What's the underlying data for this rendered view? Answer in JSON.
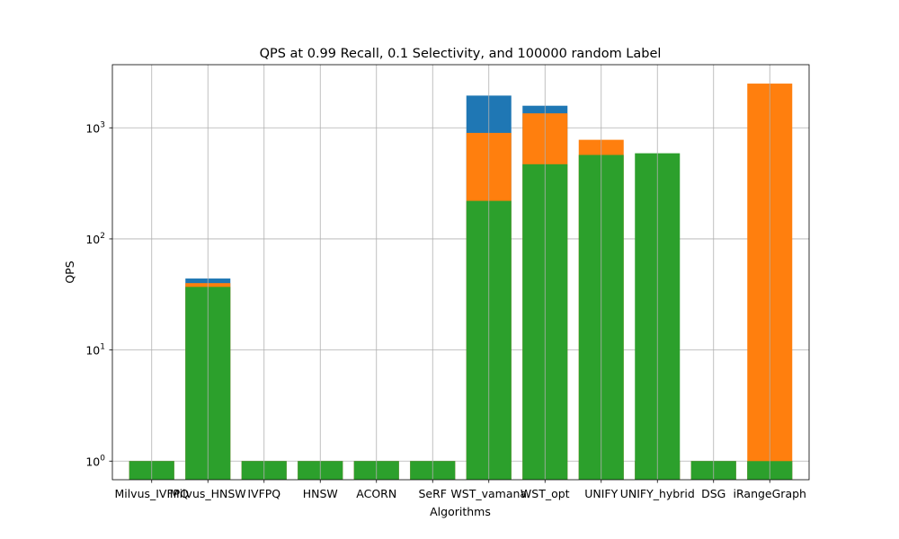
{
  "chart_data": {
    "type": "bar",
    "title": "QPS at 0.99 Recall, 0.1 Selectivity, and 100000 random Label",
    "xlabel": "Algorithms",
    "ylabel": "QPS",
    "yscale": "log",
    "ylim": [
      0.68,
      3700
    ],
    "yticks": [
      {
        "value": 1,
        "base": "10",
        "exp": "0"
      },
      {
        "value": 10,
        "base": "10",
        "exp": "1"
      },
      {
        "value": 100,
        "base": "10",
        "exp": "2"
      },
      {
        "value": 1000,
        "base": "10",
        "exp": "3"
      }
    ],
    "grid": true,
    "categories": [
      "Milvus_IVFPQ",
      "Milvus_HNSW",
      "IVFPQ",
      "HNSW",
      "ACORN",
      "SeRF",
      "WST_vamana",
      "WST_opt",
      "UNIFY",
      "UNIFY_hybrid",
      "DSG",
      "iRangeGraph"
    ],
    "series": [
      {
        "color": "#1f77b4",
        "values": [
          1,
          44,
          1,
          1,
          1,
          1,
          1950,
          1580,
          1,
          1,
          1,
          1
        ]
      },
      {
        "color": "#ff7f0e",
        "values": [
          1,
          40,
          1,
          1,
          1,
          1,
          900,
          1350,
          780,
          1,
          1,
          2500
        ]
      },
      {
        "color": "#2ca02c",
        "values": [
          1,
          37,
          1,
          1,
          1,
          1,
          220,
          470,
          570,
          590,
          1,
          1
        ]
      }
    ]
  }
}
